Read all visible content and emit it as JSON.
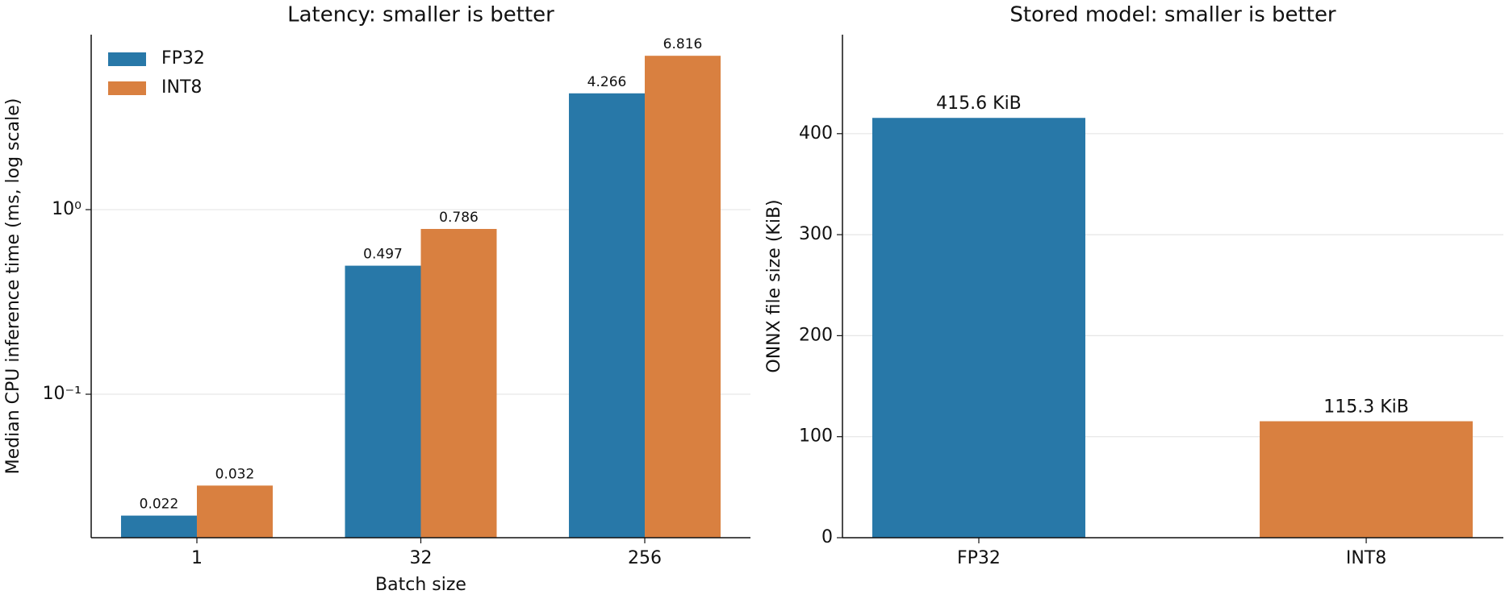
{
  "chart_data": [
    {
      "type": "bar",
      "title": "Latency: smaller is better",
      "xlabel": "Batch size",
      "ylabel": "Median CPU inference time (ms, log scale)",
      "categories": [
        "1",
        "32",
        "256"
      ],
      "series": [
        {
          "name": "FP32",
          "color": "#2878a8",
          "values": [
            0.022,
            0.497,
            4.266
          ]
        },
        {
          "name": "INT8",
          "color": "#d98040",
          "values": [
            0.032,
            0.786,
            6.816
          ]
        }
      ],
      "log_scale": true,
      "ylim": [
        0.0167,
        8.87
      ],
      "yticks": [
        {
          "value": 0.1,
          "label": "10⁻¹"
        },
        {
          "value": 1,
          "label": "10⁰"
        }
      ],
      "grid": true,
      "legend": "upper-left"
    },
    {
      "type": "bar",
      "title": "Stored model: smaller is better",
      "ylabel": "ONNX file size (KiB)",
      "categories": [
        "FP32",
        "INT8"
      ],
      "values": [
        415.6,
        115.3
      ],
      "value_labels": [
        "415.6 KiB",
        "115.3 KiB"
      ],
      "colors": [
        "#2878a8",
        "#d98040"
      ],
      "ylim": [
        0,
        498
      ],
      "yticks": [
        0,
        100,
        200,
        300,
        400
      ],
      "grid": true
    }
  ]
}
